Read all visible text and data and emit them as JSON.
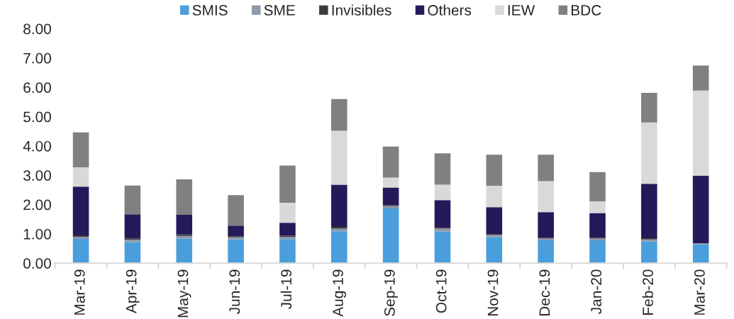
{
  "chart_data": {
    "type": "bar",
    "stacked": true,
    "categories": [
      "Mar-19",
      "Apr-19",
      "May-19",
      "Jun-19",
      "Jul-19",
      "Aug-19",
      "Sep-19",
      "Oct-19",
      "Nov-19",
      "Dec-19",
      "Jan-20",
      "Feb-20",
      "Mar-20"
    ],
    "series": [
      {
        "name": "SMIS",
        "color": "#4a9edb",
        "values": [
          0.83,
          0.72,
          0.84,
          0.81,
          0.82,
          1.09,
          1.87,
          1.08,
          0.89,
          0.78,
          0.78,
          0.74,
          0.64
        ]
      },
      {
        "name": "SME",
        "color": "#8e99ab",
        "values": [
          0.07,
          0.08,
          0.09,
          0.07,
          0.08,
          0.09,
          0.08,
          0.1,
          0.08,
          0.06,
          0.06,
          0.07,
          0.04
        ]
      },
      {
        "name": "Invisibles",
        "color": "#3a3a3a",
        "values": [
          0.05,
          0.04,
          0.05,
          0.04,
          0.04,
          0.06,
          0.03,
          0.03,
          0.03,
          0.03,
          0.03,
          0.04,
          null
        ]
      },
      {
        "name": "Others",
        "color": "#241a5a",
        "values": [
          1.66,
          0.83,
          0.67,
          0.36,
          0.44,
          1.44,
          0.6,
          0.94,
          0.91,
          0.87,
          0.84,
          1.86,
          2.31
        ]
      },
      {
        "name": "IEW",
        "color": "#d9d9d9",
        "values": [
          0.66,
          0,
          0,
          0,
          0.68,
          1.84,
          0.34,
          0.53,
          0.73,
          1.06,
          0.4,
          2.09,
          2.9
        ]
      },
      {
        "name": "BDC",
        "color": "#808080",
        "values": [
          1.19,
          0.98,
          1.21,
          1.04,
          1.27,
          1.08,
          1.06,
          1.07,
          1.06,
          0.9,
          1.0,
          1.01,
          0.85
        ]
      }
    ],
    "ylim": [
      0,
      8
    ],
    "yticks": [
      {
        "value": 0,
        "label": "0.00"
      },
      {
        "value": 1,
        "label": "1.00"
      },
      {
        "value": 2,
        "label": "2.00"
      },
      {
        "value": 3,
        "label": "3.00"
      },
      {
        "value": 4,
        "label": "4.00"
      },
      {
        "value": 5,
        "label": "5.00"
      },
      {
        "value": 6,
        "label": "6.00"
      },
      {
        "value": 7,
        "label": "7.00"
      },
      {
        "value": 8,
        "label": "8.00"
      }
    ],
    "grid": false,
    "legend": "top"
  }
}
